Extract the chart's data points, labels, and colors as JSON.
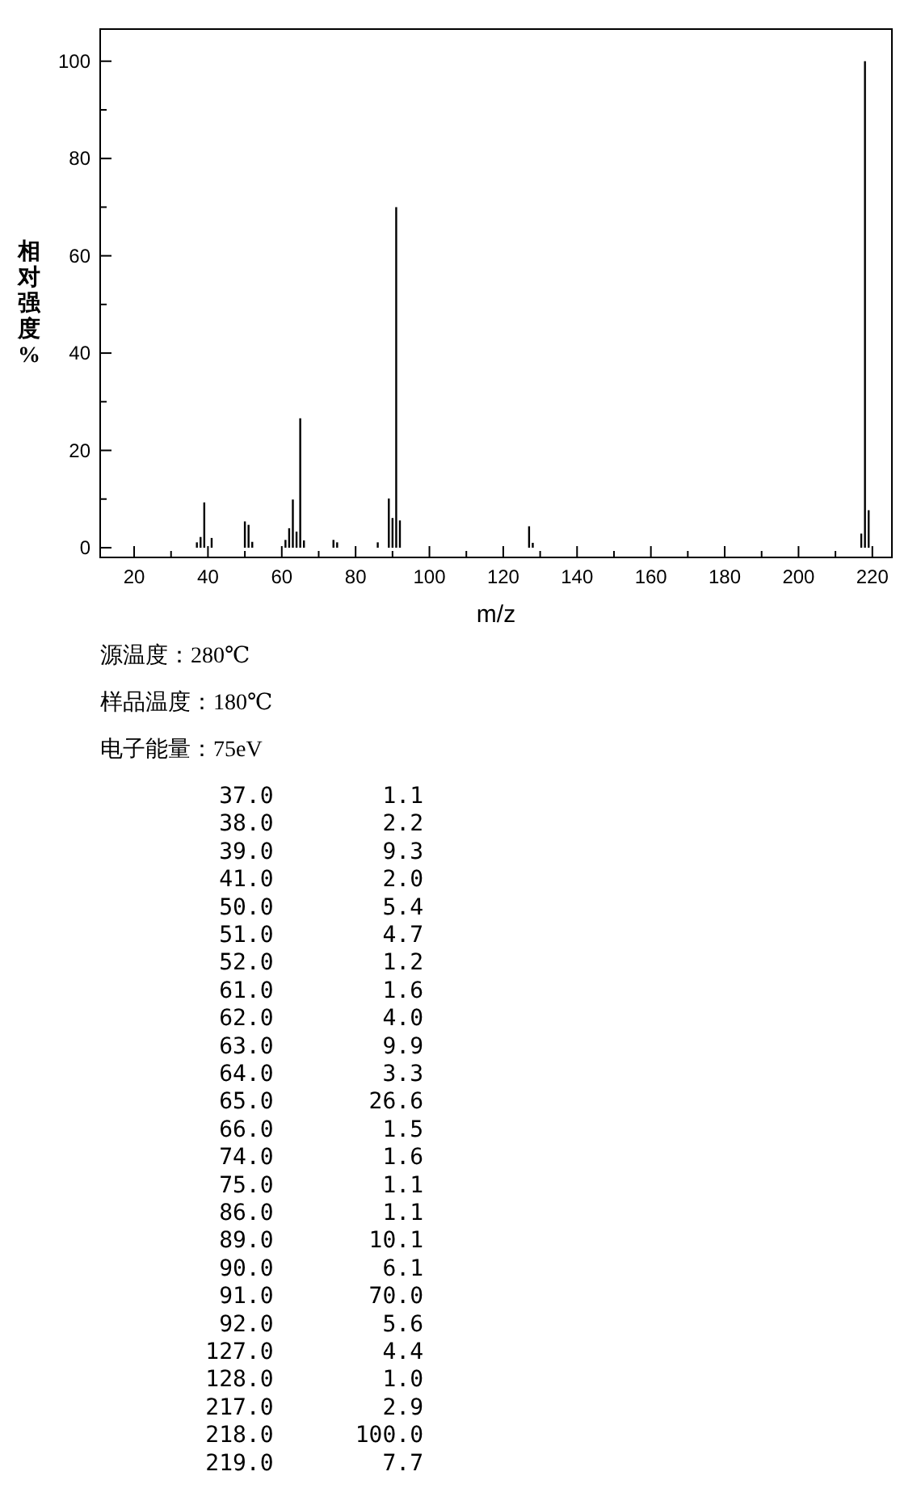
{
  "chart_data": {
    "type": "bar",
    "xlabel": "m/z",
    "ylabel": "相对强度%",
    "x": [
      37,
      38,
      39,
      41,
      50,
      51,
      52,
      61,
      62,
      63,
      64,
      65,
      66,
      74,
      75,
      86,
      89,
      90,
      91,
      92,
      127,
      128,
      217,
      218,
      219
    ],
    "values": [
      1.1,
      2.2,
      9.3,
      2.0,
      5.4,
      4.7,
      1.2,
      1.6,
      4.0,
      9.9,
      3.3,
      26.6,
      1.5,
      1.6,
      1.1,
      1.1,
      10.1,
      6.1,
      70.0,
      5.6,
      4.4,
      1.0,
      2.9,
      100.0,
      7.7
    ],
    "color": "#000000",
    "xlim": [
      10.8,
      225.3
    ],
    "xticks": [
      20,
      {
        "value": 30,
        "label": null
      },
      40,
      {
        "value": 50,
        "label": null
      },
      60,
      {
        "value": 70,
        "label": null
      },
      80,
      {
        "value": 90,
        "label": null
      },
      100,
      {
        "value": 110,
        "label": null
      },
      120,
      {
        "value": 130,
        "label": null
      },
      140,
      {
        "value": 150,
        "label": null
      },
      160,
      {
        "value": 170,
        "label": null
      },
      180,
      {
        "value": 190,
        "label": null
      },
      200,
      {
        "value": 210,
        "label": null
      },
      220
    ],
    "ylim": [
      -2,
      106.6
    ],
    "yticks": [
      0,
      {
        "value": 10,
        "label": null
      },
      20,
      {
        "value": 30,
        "label": null
      },
      40,
      {
        "value": 50,
        "label": null
      },
      60,
      {
        "value": 70,
        "label": null
      },
      80,
      {
        "value": 90,
        "label": null
      },
      100
    ],
    "grid": false,
    "annotations": [
      "源温度：280℃",
      "样品温度：180℃",
      "电子能量：75eV",
      " 37.0        1.1",
      " 38.0        2.2",
      " 39.0        9.3",
      " 41.0        2.0",
      " 50.0        5.4",
      " 51.0        4.7",
      " 52.0        1.2",
      " 61.0        1.6",
      " 62.0        4.0",
      " 63.0        9.9",
      " 64.0        3.3",
      " 65.0       26.6",
      " 66.0        1.5",
      " 74.0        1.6",
      " 75.0        1.1",
      " 86.0        1.1",
      " 89.0       10.1",
      " 90.0        6.1",
      " 91.0       70.0",
      " 92.0        5.6",
      "127.0        4.4",
      "128.0        1.0",
      "217.0        2.9",
      "218.0      100.0",
      "219.0        7.7"
    ]
  }
}
